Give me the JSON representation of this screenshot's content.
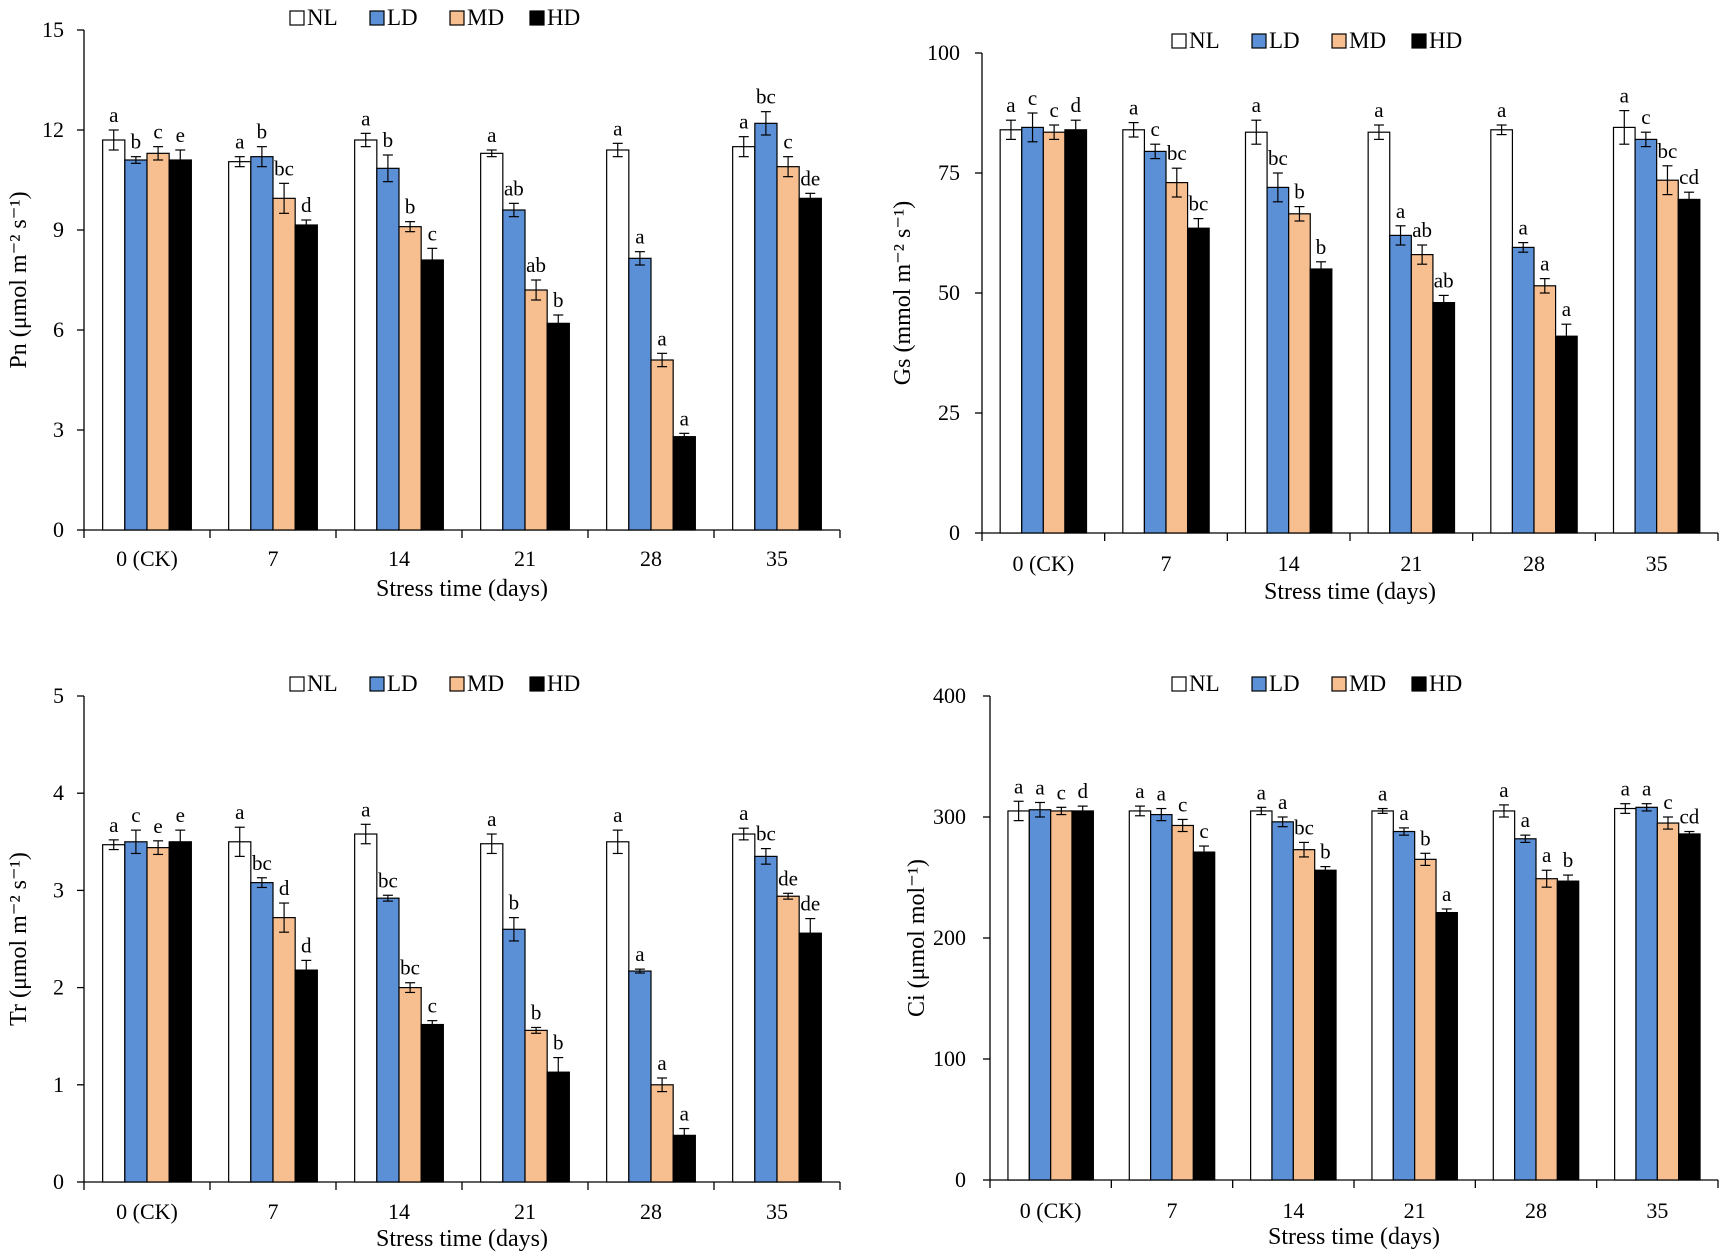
{
  "chart_data": [
    {
      "type": "bar",
      "ylabel": "Pn (μmol m⁻² s⁻¹)",
      "xlabel": "Stress time (days)",
      "ylim": [
        0,
        15
      ],
      "yticks": [
        0,
        3,
        6,
        9,
        12,
        15
      ],
      "categories": [
        "0 (CK)",
        "7",
        "14",
        "21",
        "28",
        "35"
      ],
      "legend_position": "top-center",
      "series": [
        {
          "name": "NL",
          "color": "#ffffff",
          "values": [
            11.7,
            11.05,
            11.7,
            11.3,
            11.4,
            11.5
          ],
          "errors": [
            0.3,
            0.15,
            0.2,
            0.1,
            0.2,
            0.3
          ],
          "letters": [
            "a",
            "a",
            "a",
            "a",
            "a",
            "a"
          ]
        },
        {
          "name": "LD",
          "color": "#5b8fd6",
          "values": [
            11.1,
            11.2,
            10.85,
            9.6,
            8.15,
            12.2
          ],
          "errors": [
            0.1,
            0.3,
            0.4,
            0.2,
            0.2,
            0.35
          ],
          "letters": [
            "b",
            "b",
            "b",
            "ab",
            "a",
            "bc"
          ]
        },
        {
          "name": "MD",
          "color": "#f7bf8f",
          "values": [
            11.3,
            9.95,
            9.1,
            7.2,
            5.1,
            10.9
          ],
          "errors": [
            0.2,
            0.45,
            0.15,
            0.3,
            0.2,
            0.3
          ],
          "letters": [
            "c",
            "bc",
            "b",
            "ab",
            "a",
            "c"
          ]
        },
        {
          "name": "HD",
          "color": "#000000",
          "values": [
            11.1,
            9.15,
            8.1,
            6.2,
            2.8,
            9.95
          ],
          "errors": [
            0.3,
            0.15,
            0.35,
            0.25,
            0.1,
            0.15
          ],
          "letters": [
            "e",
            "d",
            "c",
            "b",
            "a",
            "de"
          ]
        }
      ]
    },
    {
      "type": "bar",
      "ylabel": "Gs (mmol m⁻² s⁻¹)",
      "xlabel": "Stress time (days)",
      "ylim": [
        0,
        100
      ],
      "yticks": [
        0,
        25,
        50,
        75,
        100
      ],
      "categories": [
        "0 (CK)",
        "7",
        "14",
        "21",
        "28",
        "35"
      ],
      "legend_position": "top-center",
      "series": [
        {
          "name": "NL",
          "color": "#ffffff",
          "values": [
            84,
            84,
            83.5,
            83.5,
            84,
            84.5
          ],
          "errors": [
            2,
            1.5,
            2.5,
            1.5,
            1,
            3.5
          ],
          "letters": [
            "a",
            "a",
            "a",
            "a",
            "a",
            "a"
          ]
        },
        {
          "name": "LD",
          "color": "#5b8fd6",
          "values": [
            84.5,
            79.5,
            72,
            62,
            59.5,
            82
          ],
          "errors": [
            3,
            1.5,
            3,
            2,
            1,
            1.5
          ],
          "letters": [
            "c",
            "c",
            "bc",
            "a",
            "a",
            "c"
          ]
        },
        {
          "name": "MD",
          "color": "#f7bf8f",
          "values": [
            83.5,
            73,
            66.5,
            58,
            51.5,
            73.5
          ],
          "errors": [
            1.5,
            3,
            1.5,
            2,
            1.5,
            3
          ],
          "letters": [
            "c",
            "bc",
            "b",
            "ab",
            "a",
            "bc"
          ]
        },
        {
          "name": "HD",
          "color": "#000000",
          "values": [
            84,
            63.5,
            55,
            48,
            41,
            69.5
          ],
          "errors": [
            2,
            2,
            1.5,
            1.5,
            2.5,
            1.5
          ],
          "letters": [
            "d",
            "bc",
            "b",
            "ab",
            "a",
            "cd"
          ]
        }
      ]
    },
    {
      "type": "bar",
      "ylabel": "Tr (μmol m⁻² s⁻¹)",
      "xlabel": "Stress time (days)",
      "ylim": [
        0,
        5
      ],
      "yticks": [
        0,
        1,
        2,
        3,
        4,
        5
      ],
      "categories": [
        "0 (CK)",
        "7",
        "14",
        "21",
        "28",
        "35"
      ],
      "legend_position": "top-center",
      "series": [
        {
          "name": "NL",
          "color": "#ffffff",
          "values": [
            3.47,
            3.5,
            3.58,
            3.48,
            3.5,
            3.58
          ],
          "errors": [
            0.05,
            0.15,
            0.1,
            0.1,
            0.12,
            0.06
          ],
          "letters": [
            "a",
            "a",
            "a",
            "a",
            "a",
            "a"
          ]
        },
        {
          "name": "LD",
          "color": "#5b8fd6",
          "values": [
            3.5,
            3.08,
            2.92,
            2.6,
            2.17,
            3.35
          ],
          "errors": [
            0.12,
            0.05,
            0.03,
            0.12,
            0.02,
            0.08
          ],
          "letters": [
            "c",
            "bc",
            "bc",
            "b",
            "a",
            "bc"
          ]
        },
        {
          "name": "MD",
          "color": "#f7bf8f",
          "values": [
            3.44,
            2.72,
            2.0,
            1.56,
            1.0,
            2.94
          ],
          "errors": [
            0.07,
            0.15,
            0.05,
            0.03,
            0.07,
            0.03
          ],
          "letters": [
            "e",
            "d",
            "bc",
            "b",
            "a",
            "de"
          ]
        },
        {
          "name": "HD",
          "color": "#000000",
          "values": [
            3.5,
            2.18,
            1.62,
            1.13,
            0.48,
            2.56
          ],
          "errors": [
            0.12,
            0.1,
            0.04,
            0.15,
            0.07,
            0.15
          ],
          "letters": [
            "e",
            "d",
            "c",
            "b",
            "a",
            "de"
          ]
        }
      ]
    },
    {
      "type": "bar",
      "ylabel": "Ci (μmol mol⁻¹)",
      "xlabel": "Stress time (days)",
      "ylim": [
        0,
        400
      ],
      "yticks": [
        0,
        100,
        200,
        300,
        400
      ],
      "categories": [
        "0 (CK)",
        "7",
        "14",
        "21",
        "28",
        "35"
      ],
      "legend_position": "top-center",
      "series": [
        {
          "name": "NL",
          "color": "#ffffff",
          "values": [
            305,
            305,
            305,
            305,
            305,
            307
          ],
          "errors": [
            8,
            4,
            3,
            2,
            5,
            4
          ],
          "letters": [
            "a",
            "a",
            "a",
            "a",
            "a",
            "a"
          ]
        },
        {
          "name": "LD",
          "color": "#5b8fd6",
          "values": [
            306,
            302,
            296,
            288,
            282,
            308
          ],
          "errors": [
            6,
            5,
            4,
            3,
            3,
            3
          ],
          "letters": [
            "a",
            "a",
            "a",
            "a",
            "a",
            "a"
          ]
        },
        {
          "name": "MD",
          "color": "#f7bf8f",
          "values": [
            305,
            293,
            273,
            265,
            249,
            295
          ],
          "errors": [
            3,
            5,
            6,
            5,
            7,
            5
          ],
          "letters": [
            "c",
            "c",
            "bc",
            "b",
            "a",
            "c"
          ]
        },
        {
          "name": "HD",
          "color": "#000000",
          "values": [
            305,
            271,
            256,
            221,
            247,
            286
          ],
          "errors": [
            4,
            5,
            3,
            3,
            5,
            2
          ],
          "letters": [
            "d",
            "c",
            "b",
            "a",
            "b",
            "cd"
          ]
        }
      ]
    }
  ]
}
